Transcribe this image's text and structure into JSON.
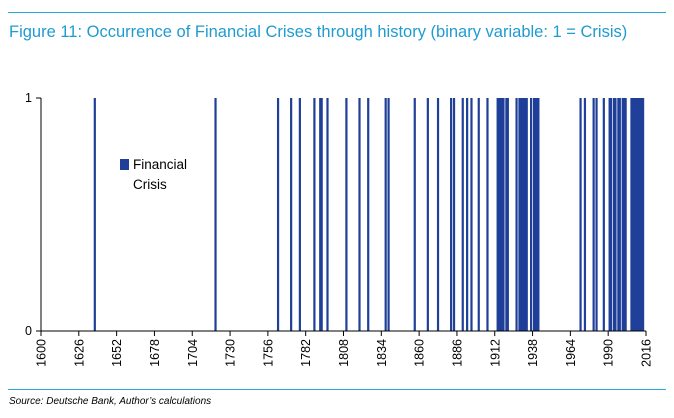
{
  "figure": {
    "title": "Figure 11: Occurrence of Financial Crises through history (binary variable: 1 = Crisis)",
    "source": "Source: Deutsche Bank, Author’s calculations"
  },
  "colors": {
    "accent": "#1f9bd1",
    "bar": "#1f3f99",
    "axis": "#000000"
  },
  "chart_data": {
    "type": "bar",
    "title": "",
    "xlabel": "",
    "ylabel": "",
    "ylim": [
      0,
      1
    ],
    "yticks": [
      "0",
      "1"
    ],
    "xlim": [
      1600,
      2016
    ],
    "xticks": [
      "1600",
      "1626",
      "1652",
      "1678",
      "1704",
      "1730",
      "1756",
      "1782",
      "1808",
      "1834",
      "1860",
      "1886",
      "1912",
      "1938",
      "1964",
      "1990",
      "2016"
    ],
    "legend": {
      "position": "upper-left",
      "label": "Financial Crisis"
    },
    "grid": false,
    "series": [
      {
        "name": "Financial Crisis",
        "value": 1,
        "years": [
          1637,
          1720,
          1763,
          1772,
          1778,
          1788,
          1792,
          1793,
          1797,
          1810,
          1819,
          1825,
          1837,
          1839,
          1857,
          1866,
          1873,
          1882,
          1884,
          1890,
          1893,
          1896,
          1901,
          1907,
          1914,
          1915,
          1916,
          1917,
          1918,
          1920,
          1921,
          1927,
          1929,
          1930,
          1931,
          1932,
          1933,
          1934,
          1937,
          1939,
          1940,
          1941,
          1942,
          1971,
          1974,
          1980,
          1982,
          1987,
          1991,
          1992,
          1994,
          1995,
          1997,
          1998,
          2000,
          2001,
          2002,
          2006,
          2007,
          2008,
          2009,
          2010,
          2011,
          2012,
          2013,
          2014
        ]
      }
    ]
  }
}
